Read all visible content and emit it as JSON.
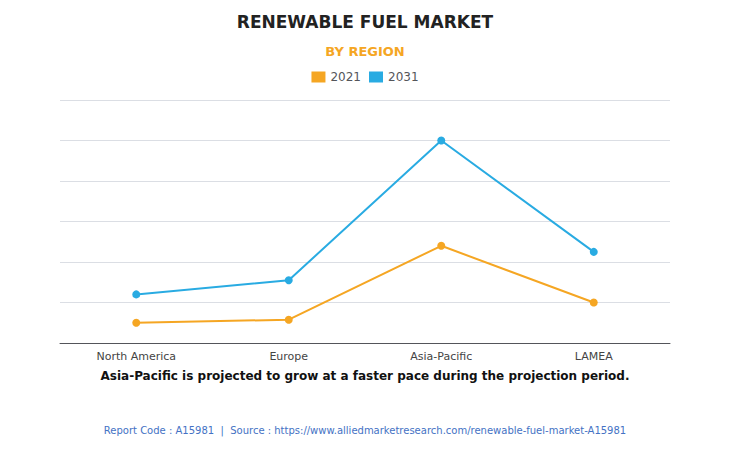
{
  "chart_data": {
    "type": "line",
    "title": "RENEWABLE FUEL MARKET",
    "subtitle": "BY REGION",
    "categories": [
      "North America",
      "Europe",
      "Asia-Pacific",
      "LAMEA"
    ],
    "series": [
      {
        "name": "2021",
        "color": "#F5A623",
        "values": [
          1.0,
          1.15,
          4.8,
          2.0
        ]
      },
      {
        "name": "2031",
        "color": "#29ABE2",
        "values": [
          2.4,
          3.1,
          10.0,
          4.5
        ]
      }
    ],
    "ylim": [
      0,
      12
    ],
    "yticks": [
      0,
      2,
      4,
      6,
      8,
      10,
      12
    ],
    "grid": true,
    "legend": "top",
    "tick_labels": "x",
    "marker": "circle",
    "annotations": [
      "Asia-Pacific is projected to grow at a faster pace during the projection period.",
      "Report Code : A15981  |  Source : https://www.alliedmarketresearch.com/renewable-fuel-market-A15981"
    ]
  }
}
